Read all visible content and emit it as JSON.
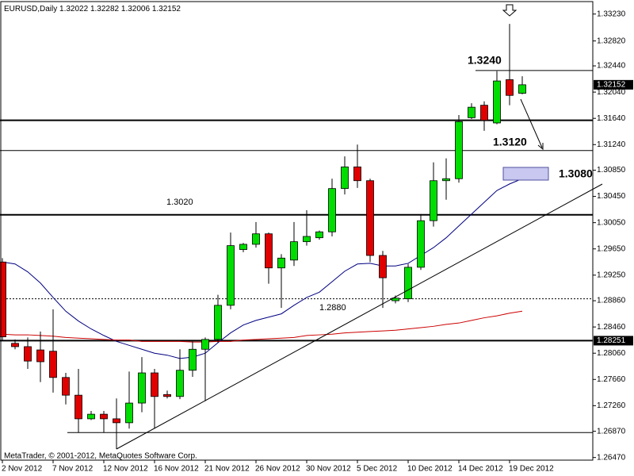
{
  "chart_data": {
    "type": "candlestick",
    "title": "EURUSD,Daily",
    "footer": "MetaTrader, © 2001-2012, MetaQuotes Software Corp.",
    "categories": [
      "2 Nov 2012",
      null,
      null,
      null,
      "7 Nov 2012",
      null,
      null,
      null,
      "12 Nov 2012",
      null,
      null,
      null,
      "16 Nov 2012",
      null,
      null,
      null,
      "21 Nov 2012",
      null,
      null,
      null,
      "26 Nov 2012",
      null,
      null,
      null,
      "30 Nov 2012",
      null,
      null,
      null,
      "5 Dec 2012",
      null,
      null,
      null,
      "10 Dec 2012",
      null,
      null,
      null,
      "14 Dec 2012",
      null,
      null,
      null,
      "19 Dec 2012",
      null
    ],
    "open": [
      1.2945,
      1.2821,
      1.2816,
      1.2811,
      1.2809,
      1.2769,
      1.2742,
      1.2706,
      1.2713,
      1.2706,
      1.27,
      1.273,
      1.2776,
      1.2743,
      1.274,
      1.278,
      1.2812,
      1.2827,
      1.2879,
      1.2964,
      1.2972,
      1.2988,
      1.2936,
      1.2948,
      1.2976,
      1.2982,
      1.2991,
      1.3057,
      1.309,
      1.3069,
      1.2955,
      1.2886,
      1.2889,
      1.2937,
      1.3008,
      1.3069,
      1.3072,
      1.3165,
      1.3184,
      1.3157,
      1.3223,
      1.32022
    ],
    "high": [
      1.2951,
      1.2827,
      1.283,
      1.2839,
      1.2873,
      1.2776,
      1.2782,
      1.2718,
      1.2718,
      1.2737,
      1.2778,
      1.28,
      1.2782,
      1.2749,
      1.2812,
      1.2824,
      1.283,
      1.2895,
      1.299,
      1.2974,
      1.3006,
      1.299,
      1.2957,
      1.3006,
      1.3024,
      1.2993,
      1.3072,
      1.3106,
      1.3124,
      1.3072,
      1.2962,
      1.2894,
      1.2942,
      1.3018,
      1.3097,
      1.3103,
      1.3169,
      1.3187,
      1.319,
      1.3236,
      1.3308,
      1.32282
    ],
    "low": [
      1.2825,
      1.2812,
      1.2782,
      1.2762,
      1.2746,
      1.2728,
      1.2685,
      1.2704,
      1.2685,
      1.266,
      1.2691,
      1.2716,
      1.2691,
      1.2737,
      1.2736,
      1.277,
      1.2733,
      1.2822,
      1.2873,
      1.296,
      1.2967,
      1.2912,
      1.2875,
      1.2939,
      1.297,
      1.2979,
      1.2984,
      1.3048,
      1.3058,
      1.2945,
      1.2875,
      1.2882,
      1.2884,
      1.2933,
      1.2999,
      1.304,
      1.3066,
      1.3163,
      1.3145,
      1.3155,
      1.3184,
      1.32006
    ],
    "close": [
      1.2831,
      1.2816,
      1.2794,
      1.2793,
      1.2769,
      1.2742,
      1.2706,
      1.2713,
      1.2706,
      1.27,
      1.273,
      1.2776,
      1.274,
      1.274,
      1.278,
      1.2812,
      1.2827,
      1.2879,
      1.297,
      1.2972,
      1.2988,
      1.2936,
      1.2951,
      1.2976,
      1.2984,
      1.2991,
      1.3057,
      1.309,
      1.3069,
      1.2955,
      1.2921,
      1.289,
      1.2937,
      1.3008,
      1.3069,
      1.3072,
      1.3159,
      1.3181,
      1.3161,
      1.3221,
      1.3199,
      1.32152
    ],
    "up_color": "#00dd00",
    "down_color": "#e00000",
    "moving_averages": [
      {
        "color": "#000080",
        "values": [
          1.2945,
          1.2942,
          1.293,
          1.2913,
          1.2891,
          1.287,
          1.2855,
          1.2843,
          1.2833,
          1.2824,
          1.2818,
          1.2812,
          1.2806,
          1.2803,
          1.2798,
          1.28,
          1.2806,
          1.2822,
          1.2837,
          1.2849,
          1.2856,
          1.2861,
          1.2866,
          1.2879,
          1.2891,
          1.2899,
          1.2915,
          1.2931,
          1.2942,
          1.2943,
          1.2939,
          1.2939,
          1.2943,
          1.2955,
          1.2967,
          1.2982,
          1.3,
          1.3018,
          1.3036,
          1.3054,
          1.3064,
          1.3072
        ]
      },
      {
        "color": "#cc0000",
        "values": [
          1.2835,
          1.2834,
          1.2834,
          1.2833,
          1.2832,
          1.283,
          1.2829,
          1.2828,
          1.2827,
          1.2826,
          1.2826,
          1.2824,
          1.2824,
          1.2824,
          1.2824,
          1.2823,
          1.2823,
          1.2824,
          1.2824,
          1.2826,
          1.2827,
          1.2828,
          1.2829,
          1.283,
          1.2833,
          1.2834,
          1.2835,
          1.2837,
          1.2838,
          1.2839,
          1.284,
          1.2841,
          1.2843,
          1.2845,
          1.2847,
          1.285,
          1.2852,
          1.2856,
          1.286,
          1.2863,
          1.2867,
          1.287
        ]
      }
    ],
    "levels": [
      {
        "value": 1.3237,
        "style": "thin"
      },
      {
        "value": 1.3161,
        "style": "thick"
      },
      {
        "value": 1.3115,
        "style": "thin"
      },
      {
        "value": 1.3017,
        "style": "thick"
      },
      {
        "value": 1.2889,
        "style": "dotted"
      },
      {
        "value": 1.28251,
        "style": "thick",
        "label_on_axis": true
      },
      {
        "value": 1.2685,
        "style": "thin"
      }
    ],
    "show_last_price": true,
    "annotations": [
      {
        "text": "1.3240"
      },
      {
        "text": "1.3120"
      },
      {
        "text": "1.3080"
      },
      {
        "text": "1.3020"
      },
      {
        "text": "1.2880"
      }
    ],
    "ylim": [
      1.2643,
      1.3342
    ],
    "yticks": [
      {
        "value": 1.3323,
        "label": "1.33230"
      },
      {
        "value": 1.3282,
        "label": "1.32820"
      },
      {
        "value": 1.3244,
        "label": "1.32440"
      },
      {
        "value": 1.3204,
        "label": "1.32040"
      },
      {
        "value": 1.3164,
        "label": "1.31640"
      },
      {
        "value": 1.3124,
        "label": "1.31240"
      },
      {
        "value": 1.3085,
        "label": "1.30850"
      },
      {
        "value": 1.3045,
        "label": "1.30450"
      },
      {
        "value": 1.3005,
        "label": "1.30050"
      },
      {
        "value": 1.2965,
        "label": "1.29650"
      },
      {
        "value": 1.2925,
        "label": "1.29250"
      },
      {
        "value": 1.2886,
        "label": "1.28860"
      },
      {
        "value": 1.2846,
        "label": "1.28460"
      },
      {
        "value": 1.2806,
        "label": "1.28060"
      },
      {
        "value": 1.2766,
        "label": "1.27660"
      },
      {
        "value": 1.2726,
        "label": "1.27260"
      },
      {
        "value": 1.2687,
        "label": "1.26870"
      },
      {
        "value": 1.2647,
        "label": "1.26470"
      }
    ]
  }
}
